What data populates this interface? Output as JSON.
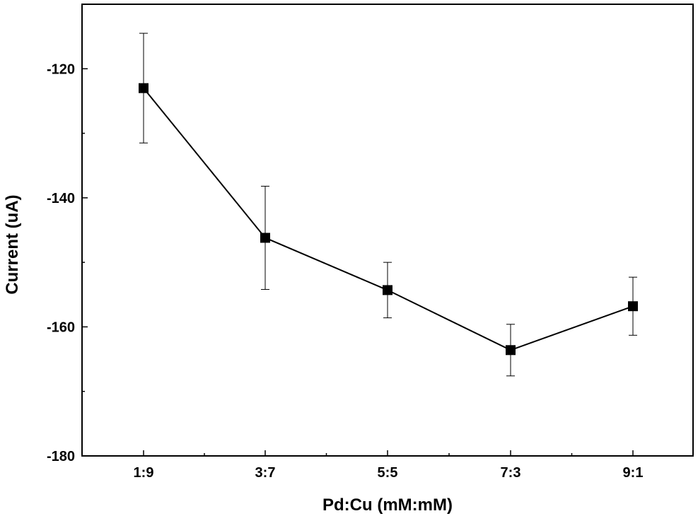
{
  "chart_data": {
    "type": "line",
    "categories": [
      "1:9",
      "3:7",
      "5:5",
      "7:3",
      "9:1"
    ],
    "series": [
      {
        "values": [
          -123.0,
          -146.2,
          -154.3,
          -163.6,
          -156.8
        ],
        "error": [
          8.5,
          8.0,
          4.3,
          4.0,
          4.5
        ],
        "color": "#000000",
        "marker": "square"
      }
    ],
    "title": "",
    "xlabel": "Pd:Cu (mM:mM)",
    "ylabel": "Current (uA)",
    "ylim": [
      -180,
      -110
    ],
    "yticks": [
      -180,
      -160,
      -140,
      -120
    ],
    "yticks_minor": [
      -170,
      -150,
      -130,
      -110
    ],
    "grid": false,
    "legend": "none"
  }
}
